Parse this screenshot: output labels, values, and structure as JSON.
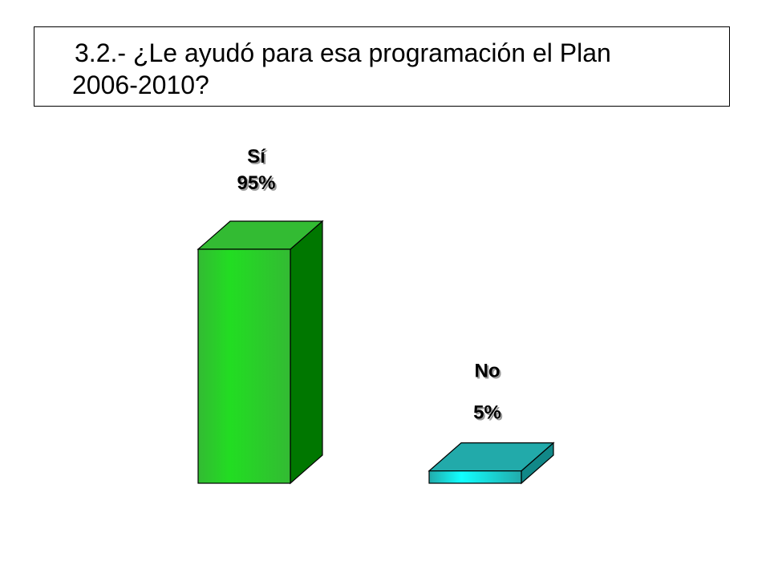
{
  "title": {
    "line1": "3.2.- ¿Le ayudó para esa programación el Plan",
    "line2": "2006-2010?"
  },
  "chart_data": {
    "type": "bar",
    "title": "3.2.- ¿Le ayudó para esa programación el Plan 2006-2010?",
    "categories": [
      "Sí",
      "No"
    ],
    "values": [
      95,
      5
    ],
    "value_labels": [
      "95%",
      "5%"
    ],
    "unit": "%",
    "ylim": [
      0,
      100
    ],
    "grid": false,
    "legend": "none",
    "three_d": true,
    "colors": {
      "Sí": {
        "front": "#22dd22",
        "side": "#007700",
        "top": "#33bb33"
      },
      "No": {
        "front": "#11ffff",
        "side": "#118888",
        "top": "#22aaaa"
      }
    }
  }
}
